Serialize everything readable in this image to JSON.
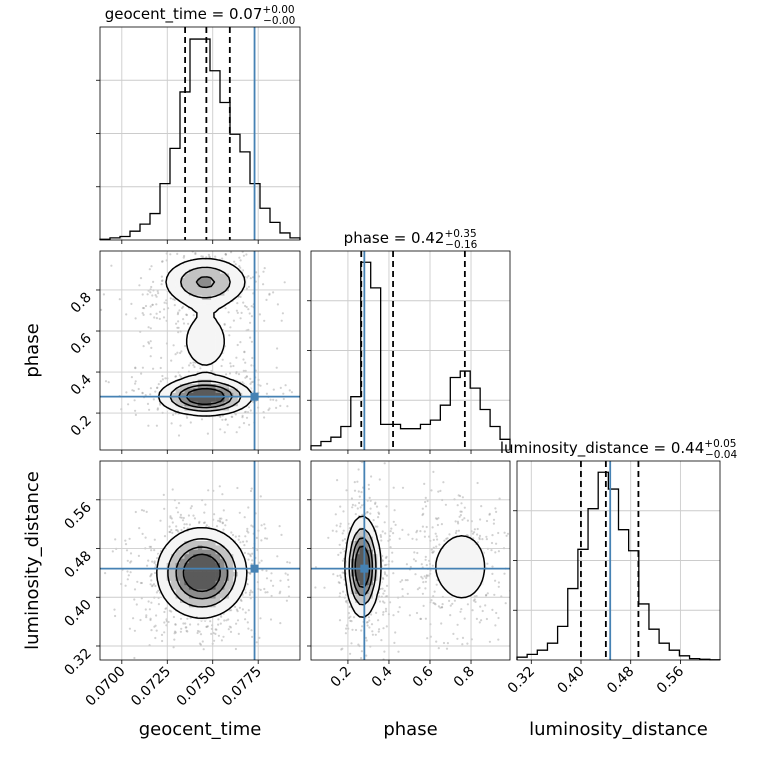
{
  "figure": {
    "type": "corner plot",
    "truth_color": "#4682b4",
    "line_color": "#000000",
    "grid": true
  },
  "chart_data": {
    "type": "corner",
    "parameters": [
      "geocent_time",
      "phase",
      "luminosity_distance"
    ],
    "truth": {
      "geocent_time": 0.0773,
      "phase": 0.28,
      "luminosity_distance": 0.447
    },
    "titles": [
      {
        "param": "geocent_time",
        "prefix": "geocent_time = ",
        "median": "0.07",
        "plus": "+0.00",
        "minus": "−0.00"
      },
      {
        "param": "phase",
        "prefix": "phase = ",
        "median": "0.42",
        "plus": "+0.35",
        "minus": "−0.16"
      },
      {
        "param": "luminosity_distance",
        "prefix": "luminosity_distance = ",
        "median": "0.44",
        "plus": "+0.05",
        "minus": "−0.04"
      }
    ],
    "axes": {
      "geocent_time": {
        "label": "geocent_time",
        "range": [
          0.0688,
          0.0798
        ],
        "ticks": [
          0.07,
          0.0725,
          0.075,
          0.0775
        ],
        "tick_labels": [
          "0.0700",
          "0.0725",
          "0.0750",
          "0.0775"
        ]
      },
      "phase": {
        "label": "phase",
        "range": [
          0.02,
          0.99
        ],
        "ticks": [
          0.2,
          0.4,
          0.6,
          0.8
        ],
        "tick_labels": [
          "0.2",
          "0.4",
          "0.6",
          "0.8"
        ]
      },
      "luminosity_distance": {
        "label": "luminosity_distance",
        "range": [
          0.297,
          0.6237
        ],
        "ticks": [
          0.32,
          0.4,
          0.48,
          0.56
        ],
        "tick_labels": [
          "0.32",
          "0.40",
          "0.48",
          "0.56"
        ]
      }
    },
    "histograms": {
      "geocent_time": {
        "bin_edges": [
          0.0688,
          0.06935,
          0.0699,
          0.07045,
          0.071,
          0.07155,
          0.0721,
          0.07265,
          0.0732,
          0.07375,
          0.0743,
          0.07485,
          0.0754,
          0.07595,
          0.0765,
          0.07705,
          0.0776,
          0.07815,
          0.0787,
          0.07925,
          0.0798
        ],
        "counts": [
          0.2,
          0.6,
          1.0,
          2.5,
          4.5,
          7.5,
          16,
          26,
          42,
          57,
          57,
          48,
          39,
          30,
          25,
          16,
          9,
          5,
          2,
          0.6
        ],
        "quantiles": [
          0.07348,
          0.07465,
          0.07594
        ]
      },
      "phase": {
        "bin_edges": [
          0.02,
          0.0685,
          0.117,
          0.1655,
          0.214,
          0.2625,
          0.311,
          0.3595,
          0.408,
          0.4565,
          0.505,
          0.5535,
          0.602,
          0.6505,
          0.699,
          0.7475,
          0.796,
          0.8445,
          0.893,
          0.9415,
          0.99
        ],
        "counts": [
          2,
          4,
          6,
          11,
          25,
          88,
          76,
          12,
          12,
          10,
          10,
          12,
          14,
          21,
          34,
          37,
          29,
          19,
          11,
          5
        ],
        "quantiles": [
          0.265,
          0.42,
          0.77
        ]
      },
      "luminosity_distance": {
        "bin_edges": [
          0.297,
          0.31334,
          0.32967,
          0.34601,
          0.36234,
          0.37868,
          0.39501,
          0.41135,
          0.42768,
          0.44402,
          0.46035,
          0.47669,
          0.49302,
          0.50936,
          0.52569,
          0.54203,
          0.55836,
          0.5747,
          0.59103,
          0.60737,
          0.6237
        ],
        "counts": [
          2,
          4,
          7,
          12,
          24,
          51,
          79,
          108,
          134,
          122,
          93,
          78,
          40,
          22,
          12,
          7,
          3,
          1,
          0.5,
          0.2
        ],
        "quantiles": [
          0.3999,
          0.44,
          0.4924
        ]
      }
    },
    "density_2d": [
      {
        "x": "geocent_time",
        "y": "phase",
        "components": [
          {
            "mean": [
              0.0746,
              0.84
            ],
            "sd": [
              0.00125,
              0.065
            ],
            "weight": 0.35
          },
          {
            "mean": [
              0.0746,
              0.28
            ],
            "sd": [
              0.00125,
              0.045
            ],
            "weight": 0.45
          },
          {
            "mean": [
              0.0746,
              0.55
            ],
            "sd": [
              0.0011,
              0.12
            ],
            "weight": 0.2
          }
        ]
      },
      {
        "x": "geocent_time",
        "y": "luminosity_distance",
        "components": [
          {
            "mean": [
              0.0744,
              0.44
            ],
            "sd": [
              0.0012,
              0.036
            ],
            "weight": 1.0
          }
        ]
      },
      {
        "x": "phase",
        "y": "luminosity_distance",
        "components": [
          {
            "mean": [
              0.27,
              0.45
            ],
            "sd": [
              0.04,
              0.04
            ],
            "weight": 0.55
          },
          {
            "mean": [
              0.76,
              0.45
            ],
            "sd": [
              0.085,
              0.04
            ],
            "weight": 0.3
          },
          {
            "mean": [
              0.5,
              0.45
            ],
            "sd": [
              0.12,
              0.05
            ],
            "weight": 0.15
          }
        ]
      }
    ]
  }
}
